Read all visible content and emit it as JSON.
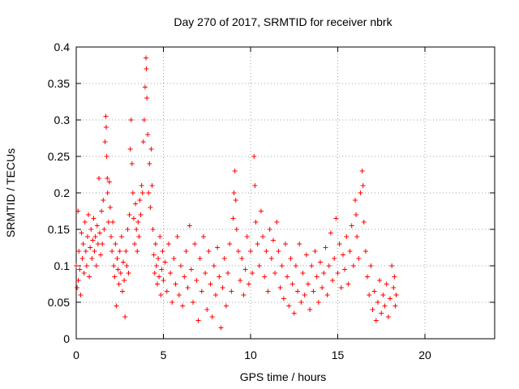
{
  "chart_data": {
    "type": "scatter",
    "title": "Day 270 of 2017, SRMTID for receiver nbrk",
    "xlabel": "GPS time / hours",
    "ylabel": "SRMTID / TECUs",
    "xlim": [
      0,
      24
    ],
    "ylim": [
      0,
      0.4
    ],
    "x_ticks": [
      0,
      5,
      10,
      15,
      20
    ],
    "x_tick_labels": [
      "0",
      "5",
      "10",
      "15",
      "20"
    ],
    "y_ticks": [
      0,
      0.05,
      0.1,
      0.15,
      0.2,
      0.25,
      0.3,
      0.35,
      0.4
    ],
    "y_tick_labels": [
      "0",
      "0.05",
      "0.1",
      "0.15",
      "0.2",
      "0.25",
      "0.3",
      "0.35",
      "0.4"
    ],
    "grid": true,
    "marker": "+",
    "series": [
      {
        "name": "SRMTID",
        "color": "#ff0000",
        "points": [
          [
            0.0,
            0.1
          ],
          [
            0.05,
            0.07
          ],
          [
            0.1,
            0.175
          ],
          [
            0.12,
            0.08
          ],
          [
            0.15,
            0.12
          ],
          [
            0.2,
            0.095
          ],
          [
            0.25,
            0.06
          ],
          [
            0.3,
            0.145
          ],
          [
            0.35,
            0.11
          ],
          [
            0.4,
            0.13
          ],
          [
            0.45,
            0.09
          ],
          [
            0.5,
            0.16
          ],
          [
            0.55,
            0.12
          ],
          [
            0.6,
            0.1
          ],
          [
            0.65,
            0.14
          ],
          [
            0.7,
            0.17
          ],
          [
            0.75,
            0.085
          ],
          [
            0.8,
            0.125
          ],
          [
            0.85,
            0.15
          ],
          [
            0.9,
            0.11
          ],
          [
            0.95,
            0.135
          ],
          [
            1.0,
            0.165
          ],
          [
            1.05,
            0.12
          ],
          [
            1.1,
            0.14
          ],
          [
            1.15,
            0.1
          ],
          [
            1.2,
            0.155
          ],
          [
            1.25,
            0.13
          ],
          [
            1.3,
            0.22
          ],
          [
            1.35,
            0.145
          ],
          [
            1.4,
            0.115
          ],
          [
            1.45,
            0.175
          ],
          [
            1.5,
            0.13
          ],
          [
            1.55,
            0.19
          ],
          [
            1.6,
            0.15
          ],
          [
            1.65,
            0.27
          ],
          [
            1.7,
            0.305
          ],
          [
            1.72,
            0.29
          ],
          [
            1.75,
            0.25
          ],
          [
            1.78,
            0.22
          ],
          [
            1.8,
            0.2
          ],
          [
            1.85,
            0.16
          ],
          [
            1.9,
            0.215
          ],
          [
            1.95,
            0.18
          ],
          [
            2.0,
            0.14
          ],
          [
            2.05,
            0.12
          ],
          [
            2.1,
            0.16
          ],
          [
            2.15,
            0.1
          ],
          [
            2.2,
            0.085
          ],
          [
            2.25,
            0.13
          ],
          [
            2.3,
            0.045
          ],
          [
            2.35,
            0.11
          ],
          [
            2.4,
            0.095
          ],
          [
            2.45,
            0.075
          ],
          [
            2.5,
            0.12
          ],
          [
            2.55,
            0.09
          ],
          [
            2.6,
            0.14
          ],
          [
            2.65,
            0.065
          ],
          [
            2.7,
            0.105
          ],
          [
            2.75,
            0.08
          ],
          [
            2.8,
            0.03
          ],
          [
            2.85,
            0.12
          ],
          [
            2.9,
            0.1
          ],
          [
            2.95,
            0.15
          ],
          [
            3.0,
            0.09
          ],
          [
            3.05,
            0.17
          ],
          [
            3.1,
            0.26
          ],
          [
            3.15,
            0.3
          ],
          [
            3.2,
            0.24
          ],
          [
            3.25,
            0.2
          ],
          [
            3.3,
            0.165
          ],
          [
            3.35,
            0.13
          ],
          [
            3.4,
            0.185
          ],
          [
            3.45,
            0.15
          ],
          [
            3.5,
            0.12
          ],
          [
            3.55,
            0.16
          ],
          [
            3.6,
            0.14
          ],
          [
            3.65,
            0.19
          ],
          [
            3.7,
            0.17
          ],
          [
            3.75,
            0.21
          ],
          [
            3.8,
            0.2
          ],
          [
            3.85,
            0.27
          ],
          [
            3.9,
            0.3
          ],
          [
            3.95,
            0.345
          ],
          [
            4.0,
            0.385
          ],
          [
            4.02,
            0.37
          ],
          [
            4.05,
            0.33
          ],
          [
            4.1,
            0.28
          ],
          [
            4.15,
            0.2
          ],
          [
            4.2,
            0.24
          ],
          [
            4.25,
            0.18
          ],
          [
            4.3,
            0.26
          ],
          [
            4.35,
            0.21
          ],
          [
            4.4,
            0.15
          ],
          [
            4.45,
            0.115
          ],
          [
            4.5,
            0.09
          ],
          [
            4.55,
            0.13
          ],
          [
            4.6,
            0.1
          ],
          [
            4.65,
            0.075
          ],
          [
            4.7,
            0.11
          ],
          [
            4.75,
            0.085
          ],
          [
            4.8,
            0.14
          ],
          [
            4.85,
            0.06
          ],
          [
            4.9,
            0.095
          ],
          [
            4.95,
            0.12
          ],
          [
            5.0,
            0.08
          ],
          [
            5.1,
            0.105
          ],
          [
            5.2,
            0.065
          ],
          [
            5.3,
            0.13
          ],
          [
            5.4,
            0.09
          ],
          [
            5.5,
            0.05
          ],
          [
            5.6,
            0.11
          ],
          [
            5.7,
            0.075
          ],
          [
            5.8,
            0.14
          ],
          [
            5.9,
            0.06
          ],
          [
            6.0,
            0.1
          ],
          [
            6.1,
            0.045
          ],
          [
            6.2,
            0.085
          ],
          [
            6.3,
            0.12
          ],
          [
            6.4,
            0.07
          ],
          [
            6.5,
            0.155
          ],
          [
            6.6,
            0.095
          ],
          [
            6.7,
            0.05
          ],
          [
            6.8,
            0.13
          ],
          [
            6.9,
            0.08
          ],
          [
            7.0,
            0.025
          ],
          [
            7.1,
            0.11
          ],
          [
            7.2,
            0.065
          ],
          [
            7.3,
            0.14
          ],
          [
            7.4,
            0.09
          ],
          [
            7.5,
            0.04
          ],
          [
            7.6,
            0.12
          ],
          [
            7.7,
            0.075
          ],
          [
            7.8,
            0.03
          ],
          [
            7.9,
            0.1
          ],
          [
            8.0,
            0.06
          ],
          [
            8.1,
            0.125
          ],
          [
            8.2,
            0.085
          ],
          [
            8.3,
            0.015
          ],
          [
            8.4,
            0.07
          ],
          [
            8.5,
            0.11
          ],
          [
            8.6,
            0.045
          ],
          [
            8.7,
            0.09
          ],
          [
            8.8,
            0.13
          ],
          [
            8.9,
            0.065
          ],
          [
            9.0,
            0.165
          ],
          [
            9.05,
            0.2
          ],
          [
            9.1,
            0.23
          ],
          [
            9.15,
            0.19
          ],
          [
            9.2,
            0.15
          ],
          [
            9.3,
            0.12
          ],
          [
            9.4,
            0.08
          ],
          [
            9.5,
            0.11
          ],
          [
            9.6,
            0.06
          ],
          [
            9.7,
            0.095
          ],
          [
            9.8,
            0.14
          ],
          [
            9.9,
            0.075
          ],
          [
            10.0,
            0.12
          ],
          [
            10.1,
            0.09
          ],
          [
            10.2,
            0.25
          ],
          [
            10.25,
            0.21
          ],
          [
            10.3,
            0.16
          ],
          [
            10.4,
            0.13
          ],
          [
            10.5,
            0.1
          ],
          [
            10.6,
            0.175
          ],
          [
            10.7,
            0.14
          ],
          [
            10.8,
            0.085
          ],
          [
            10.9,
            0.12
          ],
          [
            11.0,
            0.065
          ],
          [
            11.1,
            0.15
          ],
          [
            11.2,
            0.11
          ],
          [
            11.3,
            0.135
          ],
          [
            11.4,
            0.09
          ],
          [
            11.5,
            0.16
          ],
          [
            11.6,
            0.12
          ],
          [
            11.7,
            0.07
          ],
          [
            11.8,
            0.1
          ],
          [
            11.9,
            0.055
          ],
          [
            12.0,
            0.13
          ],
          [
            12.1,
            0.085
          ],
          [
            12.2,
            0.045
          ],
          [
            12.3,
            0.11
          ],
          [
            12.4,
            0.075
          ],
          [
            12.5,
            0.035
          ],
          [
            12.6,
            0.1
          ],
          [
            12.7,
            0.065
          ],
          [
            12.8,
            0.13
          ],
          [
            12.9,
            0.05
          ],
          [
            13.0,
            0.09
          ],
          [
            13.1,
            0.06
          ],
          [
            13.2,
            0.115
          ],
          [
            13.3,
            0.075
          ],
          [
            13.4,
            0.04
          ],
          [
            13.5,
            0.1
          ],
          [
            13.6,
            0.065
          ],
          [
            13.7,
            0.12
          ],
          [
            13.8,
            0.085
          ],
          [
            13.9,
            0.05
          ],
          [
            14.0,
            0.105
          ],
          [
            14.1,
            0.07
          ],
          [
            14.2,
            0.09
          ],
          [
            14.3,
            0.125
          ],
          [
            14.4,
            0.06
          ],
          [
            14.5,
            0.1
          ],
          [
            14.6,
            0.145
          ],
          [
            14.7,
            0.08
          ],
          [
            14.8,
            0.11
          ],
          [
            14.9,
            0.165
          ],
          [
            15.0,
            0.09
          ],
          [
            15.1,
            0.13
          ],
          [
            15.2,
            0.07
          ],
          [
            15.3,
            0.115
          ],
          [
            15.4,
            0.095
          ],
          [
            15.5,
            0.14
          ],
          [
            15.6,
            0.075
          ],
          [
            15.7,
            0.12
          ],
          [
            15.8,
            0.155
          ],
          [
            15.9,
            0.1
          ],
          [
            16.0,
            0.19
          ],
          [
            16.05,
            0.17
          ],
          [
            16.1,
            0.14
          ],
          [
            16.2,
            0.11
          ],
          [
            16.3,
            0.2
          ],
          [
            16.4,
            0.23
          ],
          [
            16.45,
            0.21
          ],
          [
            16.5,
            0.16
          ],
          [
            16.6,
            0.12
          ],
          [
            16.7,
            0.085
          ],
          [
            16.8,
            0.06
          ],
          [
            16.9,
            0.1
          ],
          [
            17.0,
            0.04
          ],
          [
            17.1,
            0.065
          ],
          [
            17.2,
            0.025
          ],
          [
            17.3,
            0.05
          ],
          [
            17.4,
            0.08
          ],
          [
            17.5,
            0.035
          ],
          [
            17.6,
            0.06
          ],
          [
            17.7,
            0.045
          ],
          [
            17.8,
            0.075
          ],
          [
            17.9,
            0.03
          ],
          [
            18.0,
            0.055
          ],
          [
            18.1,
            0.1
          ],
          [
            18.2,
            0.07
          ],
          [
            18.25,
            0.085
          ],
          [
            18.3,
            0.045
          ],
          [
            18.35,
            0.06
          ]
        ]
      }
    ]
  }
}
